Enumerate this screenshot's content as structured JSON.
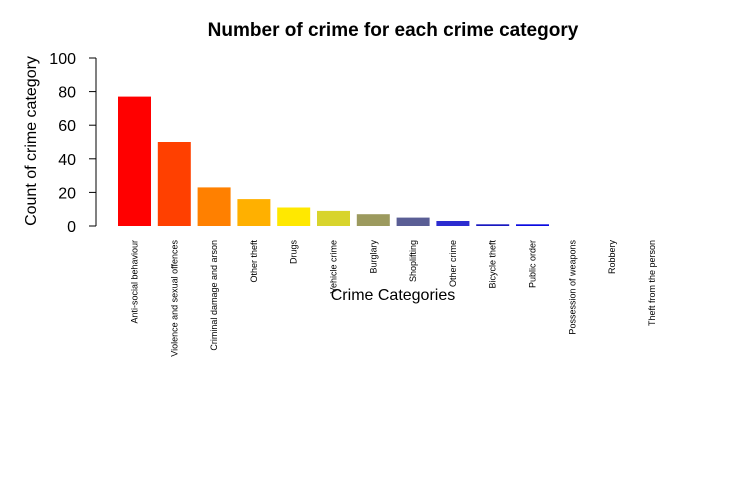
{
  "chart_data": {
    "type": "bar",
    "title": "Number of crime for each crime category",
    "xlabel": "Crime Categories",
    "ylabel": "Count of crime category",
    "ylim": [
      0,
      100
    ],
    "yticks": [
      0,
      20,
      40,
      60,
      80,
      100
    ],
    "grid": false,
    "categories": [
      "Anti-social behaviour",
      "Violence and sexual offences",
      "Criminal damage and arson",
      "Other theft",
      "Drugs",
      "Vehicle crime",
      "Burglary",
      "Shoplifting",
      "Other crime",
      "Bicycle theft",
      "Public order",
      "Possession of weapons",
      "Robbery",
      "Theft from the person"
    ],
    "values": [
      77,
      50,
      23,
      16,
      11,
      9,
      7,
      5,
      3,
      1,
      1,
      0,
      0,
      0
    ],
    "colors": [
      "#FF0000",
      "#FF4000",
      "#FF8000",
      "#FFB000",
      "#FFE800",
      "#D8D42C",
      "#9C9A5E",
      "#5A5E95",
      "#2C2CD0",
      "#1818C0",
      "#0A0AE0",
      "#0000FF",
      "#0000FF",
      "#0000FF"
    ]
  }
}
